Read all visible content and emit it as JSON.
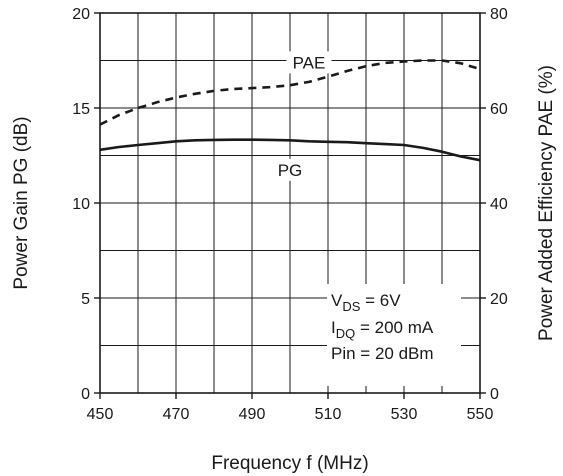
{
  "chart_data": {
    "type": "line",
    "xlabel": "Frequency f (MHz)",
    "ylabel_left": "Power  Gain PG (dB)",
    "ylabel_right": "Power Added Efficiency PAE (%)",
    "xlim": [
      450,
      550
    ],
    "ylim_left": [
      0,
      20
    ],
    "ylim_right": [
      0,
      80
    ],
    "x_ticks": [
      450,
      470,
      490,
      510,
      530,
      550
    ],
    "y_ticks_left": [
      0,
      5,
      10,
      15,
      20
    ],
    "y_ticks_right": [
      0,
      20,
      40,
      60,
      80
    ],
    "grid": true,
    "series": [
      {
        "name": "PAE",
        "axis": "right",
        "style": "dashed",
        "color": "#1a1a1a",
        "x": [
          450,
          455,
          460,
          465,
          470,
          475,
          480,
          485,
          490,
          495,
          500,
          505,
          510,
          515,
          520,
          525,
          530,
          535,
          540,
          545,
          550
        ],
        "y": [
          56.5,
          58.5,
          60.0,
          61.2,
          62.2,
          63.0,
          63.6,
          64.0,
          64.2,
          64.4,
          64.8,
          65.5,
          66.6,
          67.8,
          68.8,
          69.5,
          69.8,
          70.0,
          70.0,
          69.4,
          68.2
        ]
      },
      {
        "name": "PG",
        "axis": "left",
        "style": "solid",
        "color": "#1a1a1a",
        "x": [
          450,
          455,
          460,
          465,
          470,
          475,
          480,
          485,
          490,
          495,
          500,
          505,
          510,
          515,
          520,
          525,
          530,
          535,
          540,
          545,
          550
        ],
        "y": [
          12.8,
          12.95,
          13.05,
          13.15,
          13.25,
          13.3,
          13.32,
          13.33,
          13.33,
          13.32,
          13.3,
          13.25,
          13.22,
          13.2,
          13.15,
          13.1,
          13.05,
          12.9,
          12.7,
          12.45,
          12.25
        ]
      }
    ],
    "series_labels": [
      {
        "text": "PAE",
        "x": 505,
        "y_left": 17.4
      },
      {
        "text": "PG",
        "x": 500,
        "y_left": 11.75
      }
    ],
    "annotation": {
      "vds_main": "V",
      "vds_sub": "DS",
      "vds_rest": " = 6V",
      "idq_main": "I",
      "idq_sub": "DQ",
      "idq_rest": " = 200 mA",
      "pin": "Pin = 20 dBm"
    }
  }
}
